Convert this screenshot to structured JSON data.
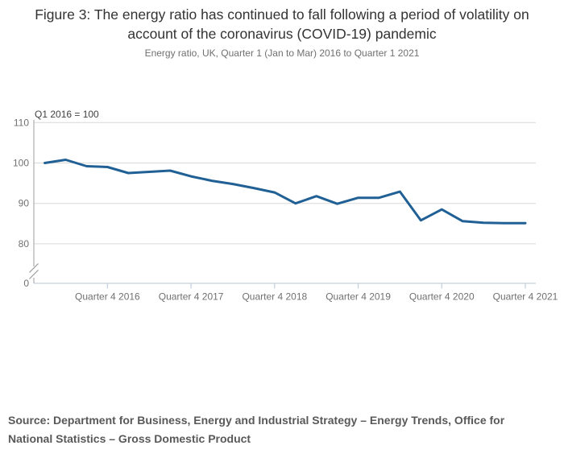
{
  "header": {
    "title": "Figure 3: The energy ratio has continued to fall following a period of volatility on account of the coronavirus (COVID-19) pandemic",
    "subtitle": "Energy ratio, UK, Quarter 1 (Jan to Mar) 2016 to Quarter 1 2021"
  },
  "chart_data": {
    "type": "line",
    "title": "Figure 3: The energy ratio has continued to fall following a period of volatility on account of the coronavirus (COVID-19) pandemic",
    "subtitle": "Energy ratio, UK, Quarter 1 (Jan to Mar) 2016 to Quarter 1 2021",
    "annotation": "Q1 2016 = 100",
    "x": [
      "2016 Q1",
      "2016 Q2",
      "2016 Q3",
      "2016 Q4",
      "2017 Q1",
      "2017 Q2",
      "2017 Q3",
      "2017 Q4",
      "2018 Q1",
      "2018 Q2",
      "2018 Q3",
      "2018 Q4",
      "2019 Q1",
      "2019 Q2",
      "2019 Q3",
      "2019 Q4",
      "2020 Q1",
      "2020 Q2",
      "2020 Q3",
      "2020 Q4",
      "2021 Q1",
      "2021 Q2",
      "2021 Q3",
      "2021 Q4"
    ],
    "values": [
      100.0,
      100.8,
      99.2,
      99.0,
      97.5,
      97.8,
      98.1,
      96.7,
      95.6,
      94.8,
      93.8,
      92.7,
      90.0,
      91.8,
      89.9,
      91.4,
      91.4,
      92.9,
      85.8,
      88.5,
      85.6,
      85.2,
      85.1,
      85.1
    ],
    "x_tick_labels": [
      "Quarter 4 2016",
      "Quarter 4 2017",
      "Quarter 4 2018",
      "Quarter 4 2019",
      "Quarter 4 2020",
      "Quarter 4 2021"
    ],
    "x_tick_quarter_index": [
      3,
      7,
      11,
      15,
      19,
      23
    ],
    "y_ticks": [
      "110",
      "100",
      "90",
      "80",
      "0"
    ],
    "y_tick_values": [
      110,
      100,
      90,
      80,
      0
    ],
    "axis_break": true,
    "grid": "horizontal",
    "legend": "none",
    "xlabel": "",
    "ylabel": "",
    "line_color": "#206095"
  },
  "source": {
    "text": "Source: Department for Business, Energy and Industrial Strategy – Energy Trends, Office for National Statistics – Gross Domestic Product"
  },
  "colors": {
    "line": "#206095",
    "grid": "#d9d9d9",
    "y_axis": "#adadad",
    "x_axis": "#c6d1dd",
    "axis_break_mark": "#9a9a9a",
    "title_text": "#333333",
    "muted_text": "#707071",
    "annotation_text": "#414042",
    "source_text": "#595959"
  }
}
